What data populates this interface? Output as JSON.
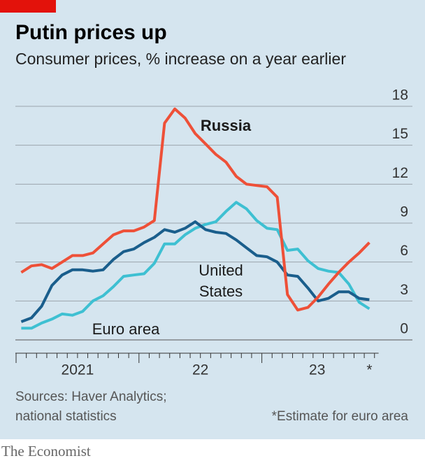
{
  "chart_data": {
    "type": "line",
    "title": "Putin prices up",
    "subtitle": "Consumer prices, % increase on a year earlier",
    "x": [
      2021.042,
      2021.125,
      2021.208,
      2021.292,
      2021.375,
      2021.458,
      2021.542,
      2021.625,
      2021.708,
      2021.792,
      2021.875,
      2021.958,
      2022.042,
      2022.125,
      2022.208,
      2022.292,
      2022.375,
      2022.458,
      2022.542,
      2022.625,
      2022.708,
      2022.792,
      2022.875,
      2022.958,
      2023.042,
      2023.125,
      2023.208,
      2023.292,
      2023.375,
      2023.458,
      2023.542,
      2023.625,
      2023.708,
      2023.792,
      2023.875
    ],
    "series": [
      {
        "name": "Russia",
        "color": "#ee5038",
        "values": [
          5.2,
          5.7,
          5.8,
          5.5,
          6.0,
          6.5,
          6.5,
          6.7,
          7.4,
          8.1,
          8.4,
          8.4,
          8.7,
          9.2,
          16.7,
          17.8,
          17.1,
          15.9,
          15.1,
          14.3,
          13.7,
          12.6,
          12.0,
          11.9,
          11.8,
          11.0,
          3.5,
          2.3,
          2.5,
          3.3,
          4.3,
          5.2,
          6.0,
          6.7,
          7.5
        ]
      },
      {
        "name": "United States",
        "color": "#1a5e8c",
        "values": [
          1.4,
          1.7,
          2.6,
          4.2,
          5.0,
          5.4,
          5.4,
          5.3,
          5.4,
          6.2,
          6.8,
          7.0,
          7.5,
          7.9,
          8.5,
          8.3,
          8.6,
          9.1,
          8.5,
          8.3,
          8.2,
          7.7,
          7.1,
          6.5,
          6.4,
          6.0,
          5.0,
          4.9,
          4.0,
          3.0,
          3.2,
          3.7,
          3.7,
          3.2,
          3.1
        ]
      },
      {
        "name": "Euro area",
        "color": "#3ec0d2",
        "values": [
          0.9,
          0.9,
          1.3,
          1.6,
          2.0,
          1.9,
          2.2,
          3.0,
          3.4,
          4.1,
          4.9,
          5.0,
          5.1,
          5.9,
          7.4,
          7.4,
          8.1,
          8.6,
          8.9,
          9.1,
          9.9,
          10.6,
          10.1,
          9.2,
          8.6,
          8.5,
          6.9,
          7.0,
          6.1,
          5.5,
          5.3,
          5.2,
          4.3,
          2.9,
          2.4
        ]
      }
    ],
    "xlim": [
      2021,
      2023.95
    ],
    "xticks": [
      {
        "value": 2021.5,
        "label": "2021"
      },
      {
        "value": 2022.5,
        "label": "22"
      },
      {
        "value": 2023.45,
        "label": "23"
      },
      {
        "value": 2023.875,
        "label": "*"
      }
    ],
    "ylim": [
      0,
      18
    ],
    "yticks": [
      0,
      3,
      6,
      9,
      12,
      15,
      18
    ],
    "grid": true,
    "source": "Sources: Haver Analytics; national statistics",
    "note": "*Estimate for euro area",
    "brand": "The Economist"
  }
}
